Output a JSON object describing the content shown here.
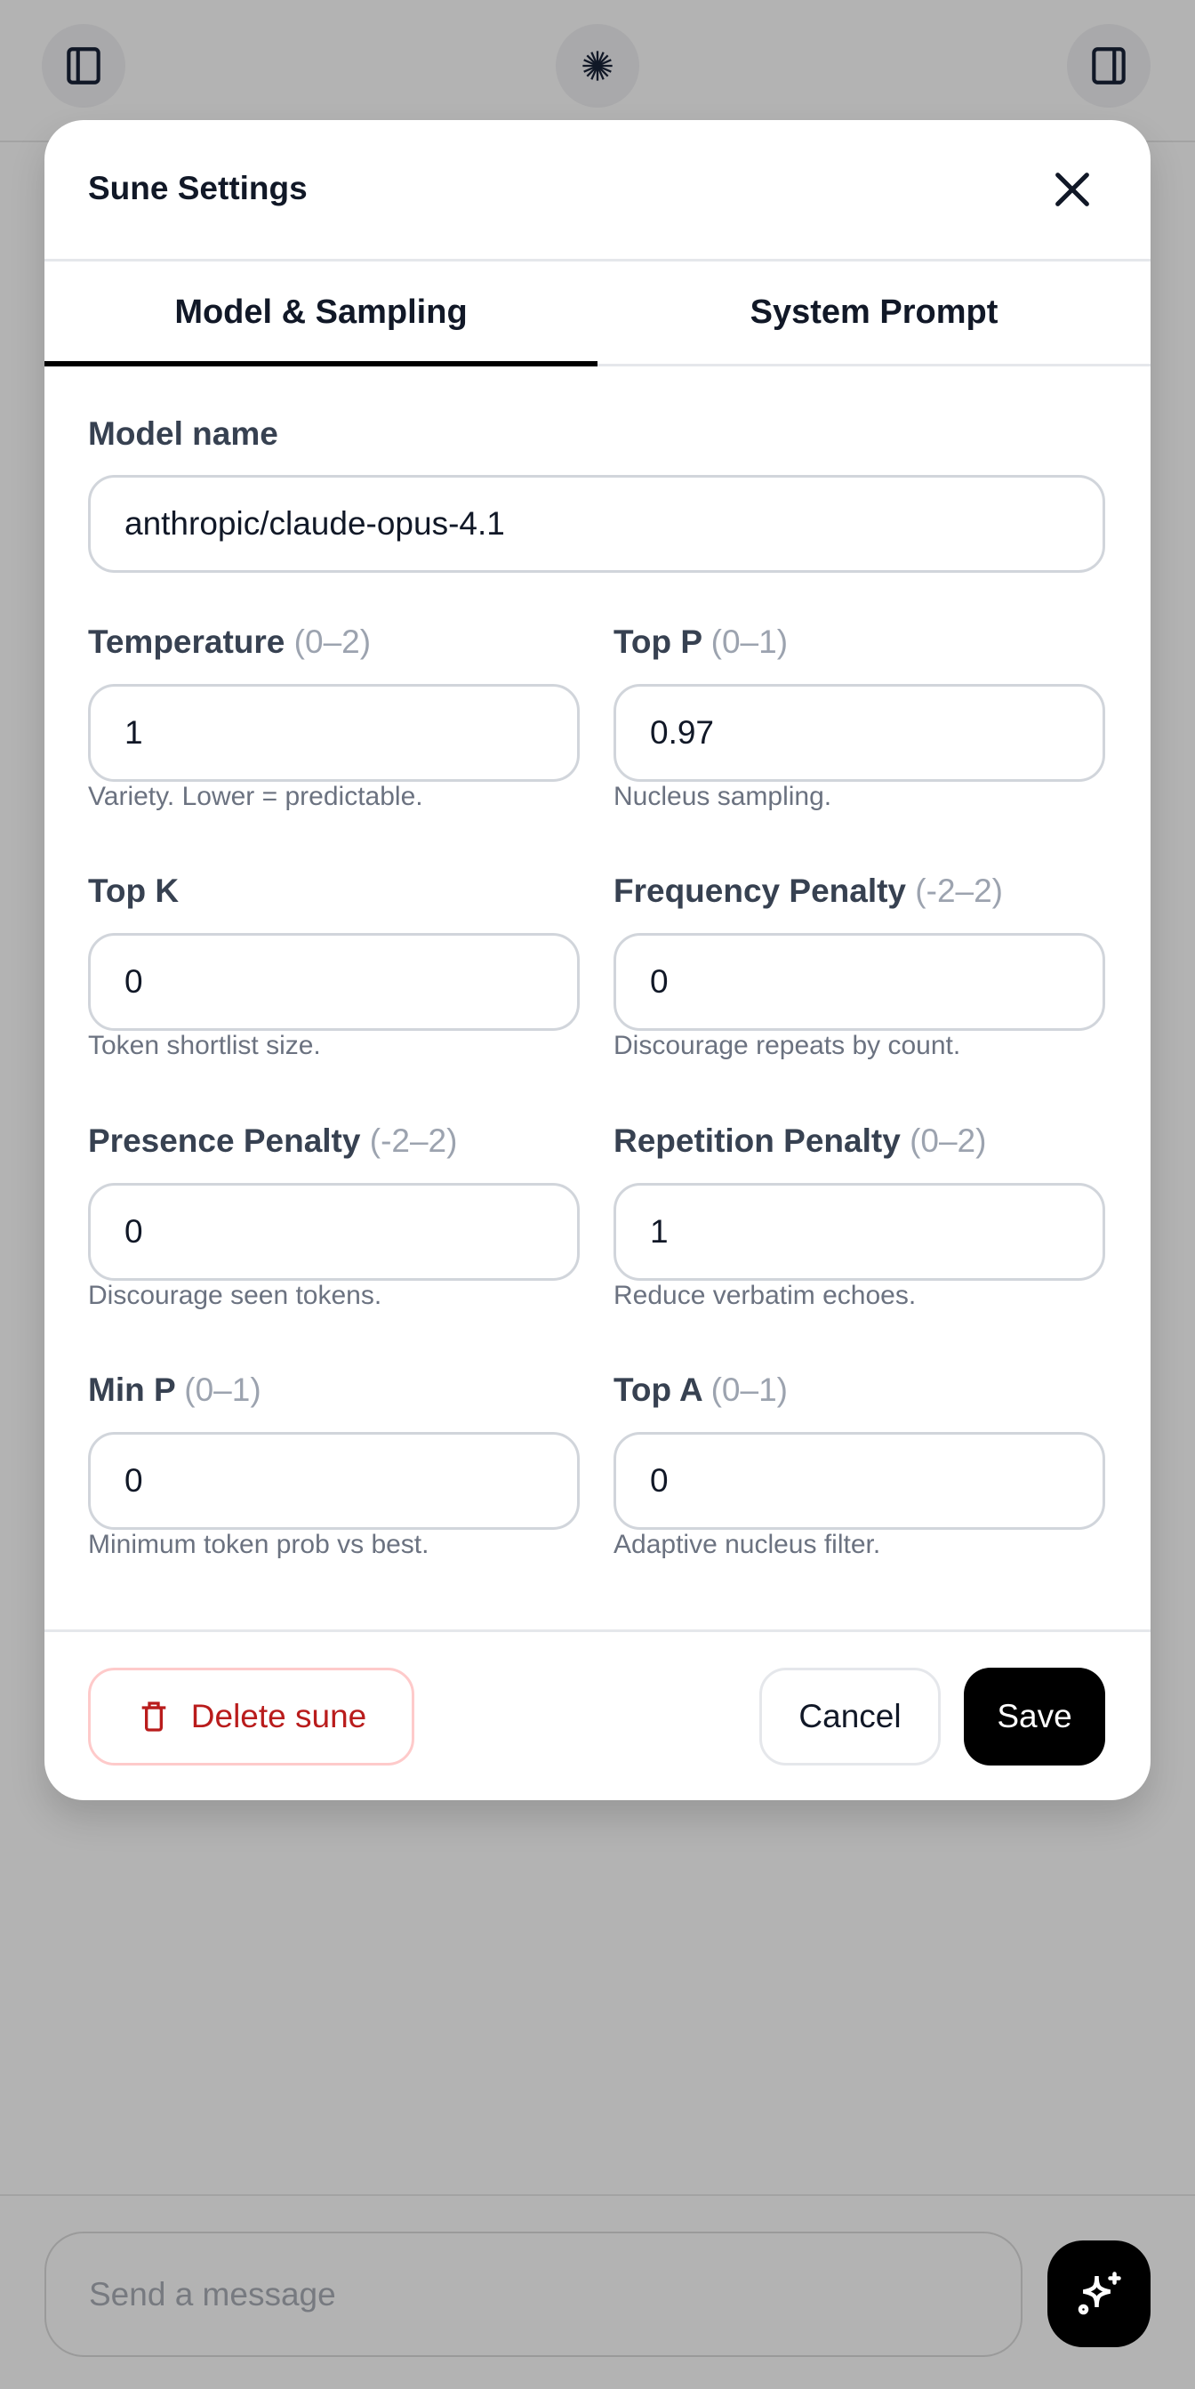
{
  "topbar": {
    "left_icon": "sidebar-left-icon",
    "center_icon": "starburst-logo-icon",
    "right_icon": "sidebar-right-icon"
  },
  "modal": {
    "title": "Sune Settings",
    "close_icon": "close-icon",
    "tabs": [
      {
        "label": "Model & Sampling",
        "active": true
      },
      {
        "label": "System Prompt",
        "active": false
      }
    ],
    "model_name": {
      "label": "Model name",
      "value": "anthropic/claude-opus-4.1"
    },
    "fields": [
      {
        "label": "Temperature",
        "range": "(0–2)",
        "value": "1",
        "help": "Variety. Lower = predictable."
      },
      {
        "label": "Top P",
        "range": "(0–1)",
        "value": "0.97",
        "help": "Nucleus sampling."
      },
      {
        "label": "Top K",
        "range": "",
        "value": "0",
        "help": "Token shortlist size."
      },
      {
        "label": "Frequency Penalty",
        "range": "(-2–2)",
        "value": "0",
        "help": "Discourage repeats by count."
      },
      {
        "label": "Presence Penalty",
        "range": "(-2–2)",
        "value": "0",
        "help": "Discourage seen tokens."
      },
      {
        "label": "Repetition Penalty",
        "range": "(0–2)",
        "value": "1",
        "help": "Reduce verbatim echoes."
      },
      {
        "label": "Min P",
        "range": "(0–1)",
        "value": "0",
        "help": "Minimum token prob vs best."
      },
      {
        "label": "Top A",
        "range": "(0–1)",
        "value": "0",
        "help": "Adaptive nucleus filter."
      }
    ],
    "footer": {
      "delete_label": "Delete sune",
      "delete_icon": "trash-icon",
      "cancel_label": "Cancel",
      "save_label": "Save"
    }
  },
  "composer": {
    "placeholder": "Send a message",
    "send_icon": "sparkles-icon"
  },
  "colors": {
    "danger": "#b91c1c",
    "primary": "#000000",
    "overlay": "#b3b3b3"
  }
}
